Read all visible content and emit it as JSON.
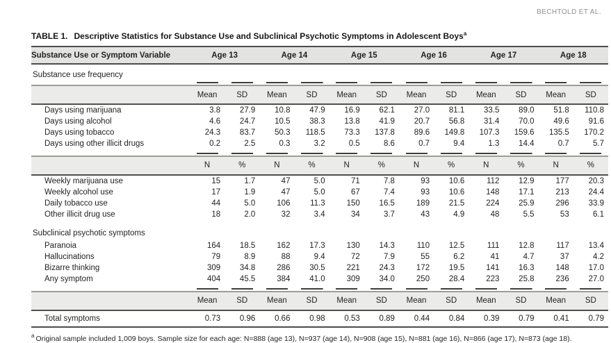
{
  "page": {
    "running_head": "BECHTOLD ET AL.",
    "table_title_label": "TABLE 1.",
    "table_title": "Descriptive Statistics for Substance Use and Subclinical Psychotic Symptoms in Adolescent Boys",
    "table_title_superscript": "a",
    "footnote_marker": "a",
    "footnote": "Original sample included 1,009 boys. Sample size for each age: N=888 (age 13), N=937 (age 14), N=908 (age 15), N=881 (age 16), N=866 (age 17), N=873 (age 18)."
  },
  "table": {
    "label_header": "Substance Use or Symptom Variable",
    "age_headers": [
      "Age 13",
      "Age 14",
      "Age 15",
      "Age 16",
      "Age 17",
      "Age 18"
    ],
    "sections": [
      {
        "title": "Substance use frequency",
        "blocks": [
          {
            "stat_labels": [
              "Mean",
              "SD"
            ],
            "rows": [
              {
                "label": "Days using marijuana",
                "values": [
                  "3.8",
                  "27.9",
                  "10.8",
                  "47.9",
                  "16.9",
                  "62.1",
                  "27.0",
                  "81.1",
                  "33.5",
                  "89.0",
                  "51.8",
                  "110.8"
                ]
              },
              {
                "label": "Days using alcohol",
                "values": [
                  "4.6",
                  "24.7",
                  "10.5",
                  "38.3",
                  "13.8",
                  "41.9",
                  "20.7",
                  "56.8",
                  "31.4",
                  "70.0",
                  "49.6",
                  "91.6"
                ]
              },
              {
                "label": "Days using tobacco",
                "values": [
                  "24.3",
                  "83.7",
                  "50.3",
                  "118.5",
                  "73.3",
                  "137.8",
                  "89.6",
                  "149.8",
                  "107.3",
                  "159.6",
                  "135.5",
                  "170.2"
                ]
              },
              {
                "label": "Days using other illicit drugs",
                "values": [
                  "0.2",
                  "2.5",
                  "0.3",
                  "3.2",
                  "0.5",
                  "8.6",
                  "0.7",
                  "9.4",
                  "1.3",
                  "14.4",
                  "0.7",
                  "5.7"
                ]
              }
            ]
          },
          {
            "stat_labels": [
              "N",
              "%"
            ],
            "rows": [
              {
                "label": "Weekly marijuana use",
                "values": [
                  "15",
                  "1.7",
                  "47",
                  "5.0",
                  "71",
                  "7.8",
                  "93",
                  "10.6",
                  "112",
                  "12.9",
                  "177",
                  "20.3"
                ]
              },
              {
                "label": "Weekly alcohol use",
                "values": [
                  "17",
                  "1.9",
                  "47",
                  "5.0",
                  "67",
                  "7.4",
                  "93",
                  "10.6",
                  "148",
                  "17.1",
                  "213",
                  "24.4"
                ]
              },
              {
                "label": "Daily tobacco use",
                "values": [
                  "44",
                  "5.0",
                  "106",
                  "11.3",
                  "150",
                  "16.5",
                  "189",
                  "21.5",
                  "224",
                  "25.9",
                  "296",
                  "33.9"
                ]
              },
              {
                "label": "Other illicit drug use",
                "values": [
                  "18",
                  "2.0",
                  "32",
                  "3.4",
                  "34",
                  "3.7",
                  "43",
                  "4.9",
                  "48",
                  "5.5",
                  "53",
                  "6.1"
                ]
              }
            ]
          }
        ]
      },
      {
        "title": "Subclinical psychotic symptoms",
        "blocks": [
          {
            "stat_labels": null,
            "rows": [
              {
                "label": "Paranoia",
                "values": [
                  "164",
                  "18.5",
                  "162",
                  "17.3",
                  "130",
                  "14.3",
                  "110",
                  "12.5",
                  "111",
                  "12.8",
                  "117",
                  "13.4"
                ]
              },
              {
                "label": "Hallucinations",
                "values": [
                  "79",
                  "8.9",
                  "88",
                  "9.4",
                  "72",
                  "7.9",
                  "55",
                  "6.2",
                  "41",
                  "4.7",
                  "37",
                  "4.2"
                ]
              },
              {
                "label": "Bizarre thinking",
                "values": [
                  "309",
                  "34.8",
                  "286",
                  "30.5",
                  "221",
                  "24.3",
                  "172",
                  "19.5",
                  "141",
                  "16.3",
                  "148",
                  "17.0"
                ]
              },
              {
                "label": "Any symptom",
                "values": [
                  "404",
                  "45.5",
                  "384",
                  "41.0",
                  "309",
                  "34.0",
                  "250",
                  "28.4",
                  "223",
                  "25.8",
                  "236",
                  "27.0"
                ]
              }
            ]
          }
        ]
      },
      {
        "title": null,
        "blocks": [
          {
            "stat_labels": [
              "Mean",
              "SD"
            ],
            "total": true,
            "rows": [
              {
                "label": "Total symptoms",
                "values": [
                  "0.73",
                  "0.96",
                  "0.66",
                  "0.98",
                  "0.53",
                  "0.89",
                  "0.44",
                  "0.84",
                  "0.39",
                  "0.79",
                  "0.41",
                  "0.79"
                ]
              }
            ]
          }
        ]
      }
    ]
  }
}
